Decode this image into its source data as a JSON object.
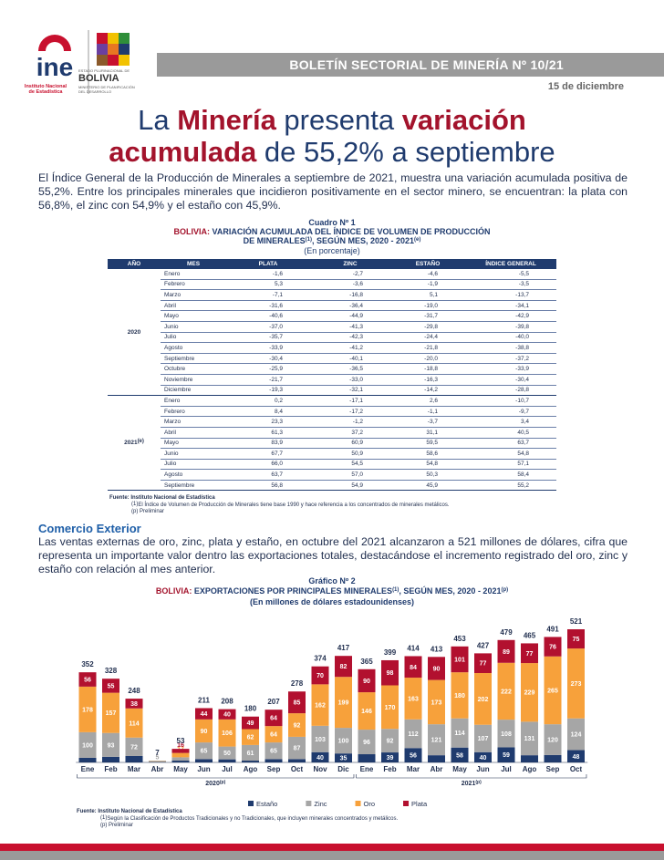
{
  "header": {
    "logo_text": "ine",
    "logo_caption": "Instituto Nacional de Estadística",
    "state_caption": "ESTADO PLURINACIONAL DE",
    "state_name": "BOLIVIA",
    "ministry": "MINISTERIO DE PLANIFICACIÓN DEL DESARROLLO",
    "banner": "BOLETÍN SECTORIAL DE MINERÍA Nº 10/21",
    "date": "15 de diciembre"
  },
  "title": {
    "parts": [
      "La ",
      "Minería",
      " presenta ",
      "variación",
      "acumulada",
      " de 55,2% a septiembre"
    ]
  },
  "intro": "El Índice General de la Producción de Minerales a septiembre de 2021, muestra una variación acumulada positiva de 55,2%. Entre los principales minerales que incidieron positivamente en el sector minero, se encuentran: la plata con 56,8%, el zinc con 54,9% y el estaño con 45,9%.",
  "table": {
    "label": "Cuadro Nº 1",
    "title_prefix": "BOLIVIA:",
    "title": " VARIACIÓN ACUMULADA DEL ÍNDICE DE VOLUMEN DE PRODUCCIÓN DE MINERALES",
    "title_sup": "(1)",
    "title_end": ", SEGÚN MES, 2020 - 2021",
    "title_end_sup": "(e)",
    "unit": "(En porcentaje)",
    "columns": [
      "AÑO",
      "MES",
      "PLATA",
      "ZINC",
      "ESTAÑO",
      "ÍNDICE GENERAL"
    ],
    "groups": [
      {
        "year": "2020",
        "rows": [
          [
            "Enero",
            "-1,6",
            "-2,7",
            "-4,6",
            "-5,5"
          ],
          [
            "Febrero",
            "5,3",
            "-3,6",
            "-1,9",
            "-3,5"
          ],
          [
            "Marzo",
            "-7,1",
            "-16,8",
            "5,1",
            "-13,7"
          ],
          [
            "Abril",
            "-31,6",
            "-36,4",
            "-19,0",
            "-34,1"
          ],
          [
            "Mayo",
            "-40,6",
            "-44,9",
            "-31,7",
            "-42,9"
          ],
          [
            "Junio",
            "-37,0",
            "-41,3",
            "-29,8",
            "-39,8"
          ],
          [
            "Julio",
            "-35,7",
            "-42,3",
            "-24,4",
            "-40,0"
          ],
          [
            "Agosto",
            "-33,9",
            "-41,2",
            "-21,8",
            "-38,8"
          ],
          [
            "Septiembre",
            "-30,4",
            "-40,1",
            "-20,0",
            "-37,2"
          ],
          [
            "Octubre",
            "-25,9",
            "-36,5",
            "-18,8",
            "-33,9"
          ],
          [
            "Noviembre",
            "-21,7",
            "-33,0",
            "-16,3",
            "-30,4"
          ],
          [
            "Diciembre",
            "-19,3",
            "-32,1",
            "-14,2",
            "-28,8"
          ]
        ]
      },
      {
        "year": "2021",
        "year_sup": "(e)",
        "rows": [
          [
            "Enero",
            "0,2",
            "-17,1",
            "2,6",
            "-10,7"
          ],
          [
            "Febrero",
            "8,4",
            "-17,2",
            "-1,1",
            "-9,7"
          ],
          [
            "Marzo",
            "23,3",
            "-1,2",
            "-3,7",
            "3,4"
          ],
          [
            "Abril",
            "61,3",
            "37,2",
            "31,1",
            "40,5"
          ],
          [
            "Mayo",
            "83,9",
            "60,9",
            "59,5",
            "63,7"
          ],
          [
            "Junio",
            "67,7",
            "50,9",
            "58,6",
            "54,8"
          ],
          [
            "Julio",
            "66,0",
            "54,5",
            "54,8",
            "57,1"
          ],
          [
            "Agosto",
            "63,7",
            "57,0",
            "50,3",
            "58,4"
          ],
          [
            "Septiembre",
            "56,8",
            "54,9",
            "45,9",
            "55,2"
          ]
        ]
      }
    ],
    "notes": {
      "source": "Fuente: Instituto Nacional de Estadística",
      "note1_mark": "(1)",
      "note1": "El Índice de Volumen de Producción de Minerales tiene base 1990 y hace referencia a los concentrados de minerales metálicos.",
      "prelim": "(p) Preliminar"
    }
  },
  "section": {
    "heading": "Comercio Exterior",
    "text": "Las ventas externas de oro, zinc, plata y estaño, en octubre del 2021 alcanzaron a 521 millones de dólares, cifra que representa un importante valor dentro las exportaciones totales, destacándose el incremento registrado del oro, zinc y estaño con relación al mes anterior."
  },
  "chart_data": {
    "type": "bar",
    "stacked": true,
    "label": "Gráfico Nº 2",
    "title_prefix": "BOLIVIA:",
    "title": " EXPORTACIONES POR PRINCIPALES MINERALES",
    "title_sup": "(1)",
    "title_end": ", SEGÚN MES, 2020 - 2021",
    "title_end_sup": "(p)",
    "subtitle": "(En millones de dólares estadounidenses)",
    "groups": [
      {
        "label": "2020",
        "label_sup": "(p)",
        "categories": [
          "Ene",
          "Feb",
          "Mar",
          "Abr",
          "May",
          "Jun",
          "Jul",
          "Ago",
          "Sep",
          "Oct",
          "Nov",
          "Dic"
        ]
      },
      {
        "label": "2021",
        "label_sup": "(p)",
        "categories": [
          "Ene",
          "Feb",
          "Mar",
          "Abr",
          "May",
          "Jun",
          "Jul",
          "Ago",
          "Sep",
          "Oct"
        ]
      }
    ],
    "series": [
      {
        "name": "Estaño",
        "color": "#1f3b6e",
        "values": [
          18,
          22,
          25,
          1,
          7,
          13,
          12,
          7,
          13,
          13,
          40,
          35,
          32,
          39,
          56,
          28,
          58,
          40,
          59,
          28,
          29,
          48
        ]
      },
      {
        "name": "Zinc",
        "color": "#a6a6a6",
        "values": [
          100,
          93,
          72,
          5,
          13,
          65,
          50,
          61,
          65,
          87,
          103,
          100,
          96,
          92,
          112,
          121,
          114,
          107,
          108,
          131,
          120,
          124
        ]
      },
      {
        "name": "Oro",
        "color": "#f7a13b",
        "values": [
          178,
          157,
          114,
          1,
          17,
          90,
          106,
          62,
          64,
          92,
          162,
          199,
          146,
          170,
          163,
          173,
          180,
          202,
          222,
          229,
          265,
          273
        ]
      },
      {
        "name": "Plata",
        "color": "#b2102f",
        "values": [
          56,
          55,
          38,
          0,
          16,
          44,
          40,
          49,
          64,
          85,
          70,
          82,
          90,
          98,
          84,
          90,
          101,
          77,
          89,
          77,
          76,
          75
        ]
      }
    ],
    "totals": [
      352,
      328,
      248,
      7,
      53,
      211,
      208,
      180,
      207,
      278,
      374,
      417,
      365,
      399,
      414,
      413,
      453,
      427,
      479,
      465,
      491,
      521
    ],
    "notes": {
      "source": "Fuente: Instituto Nacional de Estadística",
      "note1_mark": "(1)",
      "note1": "Según la Clasificación de Productos Tradicionales y no Tradicionales, que incluyen minerales concentrados y metálicos.",
      "prelim": "(p) Preliminar"
    }
  }
}
